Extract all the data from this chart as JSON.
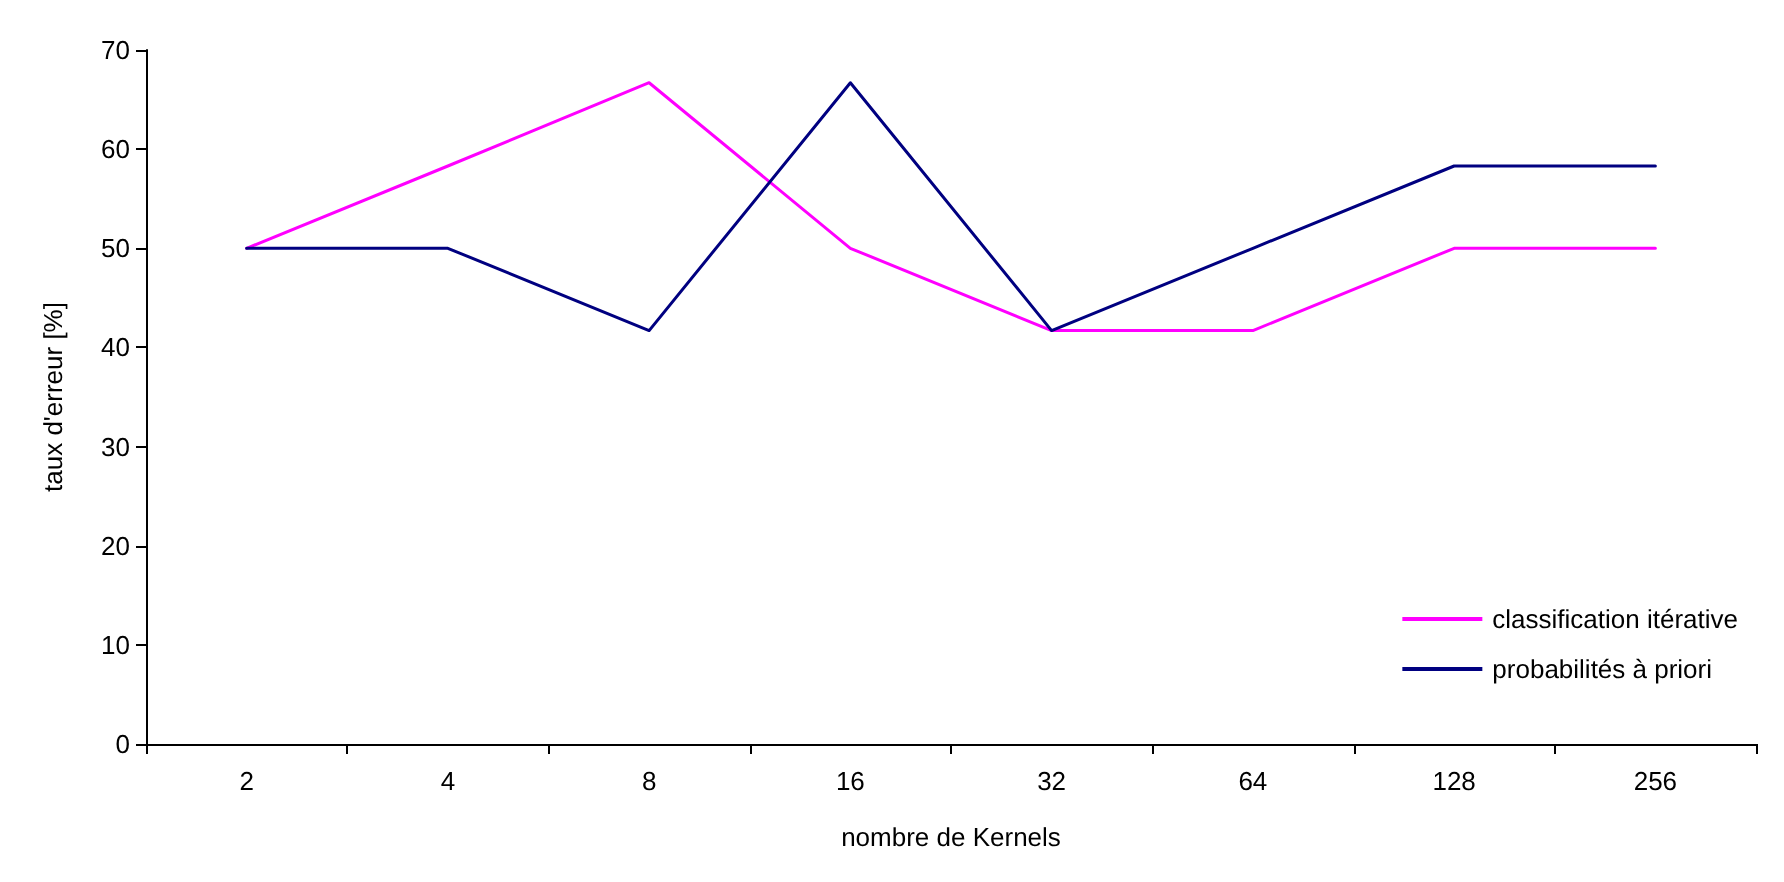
{
  "chart_data": {
    "type": "line",
    "xlabel": "nombre de Kernels",
    "ylabel": "taux d'erreur [%]",
    "categories": [
      "2",
      "4",
      "8",
      "16",
      "32",
      "64",
      "128",
      "256"
    ],
    "series": [
      {
        "name": "classification itérative",
        "color": "#ff00ff",
        "values": [
          50,
          58.3,
          66.7,
          50,
          41.7,
          41.7,
          50,
          50
        ]
      },
      {
        "name": "probabilités à priori",
        "color": "#000080",
        "values": [
          50,
          50,
          41.7,
          66.7,
          41.7,
          50,
          58.3,
          58.3
        ]
      }
    ],
    "ylim": [
      0,
      70
    ],
    "yticks": [
      0,
      10,
      20,
      30,
      40,
      50,
      60,
      70
    ],
    "grid": false,
    "legend": "bottom right",
    "marker": "none",
    "line_style": "solid"
  }
}
